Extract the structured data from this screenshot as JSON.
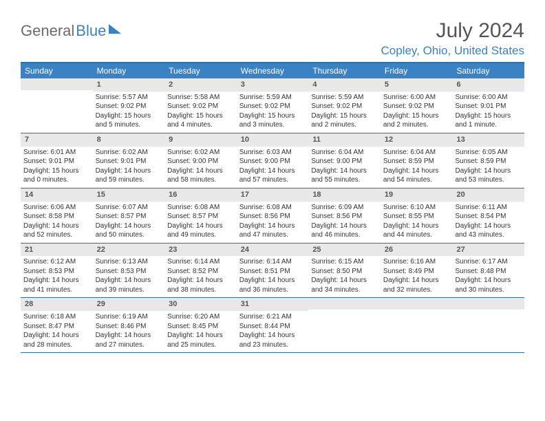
{
  "logo": {
    "text1": "General",
    "text2": "Blue"
  },
  "title": "July 2024",
  "location": "Copley, Ohio, United States",
  "weekdays": [
    "Sunday",
    "Monday",
    "Tuesday",
    "Wednesday",
    "Thursday",
    "Friday",
    "Saturday"
  ],
  "calendar": {
    "type": "table",
    "columns": 7,
    "rows": 5,
    "header_bg": "#3b82c4",
    "header_text_color": "#ffffff",
    "border_color": "#2f6fa8",
    "daynum_bg": "#e8e8e8",
    "body_bg": "#ffffff",
    "font_size_body": 10,
    "font_size_header": 12
  },
  "weeks": [
    [
      {
        "n": "",
        "sr": "",
        "ss": "",
        "dl": ""
      },
      {
        "n": "1",
        "sr": "Sunrise: 5:57 AM",
        "ss": "Sunset: 9:02 PM",
        "dl": "Daylight: 15 hours and 5 minutes."
      },
      {
        "n": "2",
        "sr": "Sunrise: 5:58 AM",
        "ss": "Sunset: 9:02 PM",
        "dl": "Daylight: 15 hours and 4 minutes."
      },
      {
        "n": "3",
        "sr": "Sunrise: 5:59 AM",
        "ss": "Sunset: 9:02 PM",
        "dl": "Daylight: 15 hours and 3 minutes."
      },
      {
        "n": "4",
        "sr": "Sunrise: 5:59 AM",
        "ss": "Sunset: 9:02 PM",
        "dl": "Daylight: 15 hours and 2 minutes."
      },
      {
        "n": "5",
        "sr": "Sunrise: 6:00 AM",
        "ss": "Sunset: 9:02 PM",
        "dl": "Daylight: 15 hours and 2 minutes."
      },
      {
        "n": "6",
        "sr": "Sunrise: 6:00 AM",
        "ss": "Sunset: 9:01 PM",
        "dl": "Daylight: 15 hours and 1 minute."
      }
    ],
    [
      {
        "n": "7",
        "sr": "Sunrise: 6:01 AM",
        "ss": "Sunset: 9:01 PM",
        "dl": "Daylight: 15 hours and 0 minutes."
      },
      {
        "n": "8",
        "sr": "Sunrise: 6:02 AM",
        "ss": "Sunset: 9:01 PM",
        "dl": "Daylight: 14 hours and 59 minutes."
      },
      {
        "n": "9",
        "sr": "Sunrise: 6:02 AM",
        "ss": "Sunset: 9:00 PM",
        "dl": "Daylight: 14 hours and 58 minutes."
      },
      {
        "n": "10",
        "sr": "Sunrise: 6:03 AM",
        "ss": "Sunset: 9:00 PM",
        "dl": "Daylight: 14 hours and 57 minutes."
      },
      {
        "n": "11",
        "sr": "Sunrise: 6:04 AM",
        "ss": "Sunset: 9:00 PM",
        "dl": "Daylight: 14 hours and 55 minutes."
      },
      {
        "n": "12",
        "sr": "Sunrise: 6:04 AM",
        "ss": "Sunset: 8:59 PM",
        "dl": "Daylight: 14 hours and 54 minutes."
      },
      {
        "n": "13",
        "sr": "Sunrise: 6:05 AM",
        "ss": "Sunset: 8:59 PM",
        "dl": "Daylight: 14 hours and 53 minutes."
      }
    ],
    [
      {
        "n": "14",
        "sr": "Sunrise: 6:06 AM",
        "ss": "Sunset: 8:58 PM",
        "dl": "Daylight: 14 hours and 52 minutes."
      },
      {
        "n": "15",
        "sr": "Sunrise: 6:07 AM",
        "ss": "Sunset: 8:57 PM",
        "dl": "Daylight: 14 hours and 50 minutes."
      },
      {
        "n": "16",
        "sr": "Sunrise: 6:08 AM",
        "ss": "Sunset: 8:57 PM",
        "dl": "Daylight: 14 hours and 49 minutes."
      },
      {
        "n": "17",
        "sr": "Sunrise: 6:08 AM",
        "ss": "Sunset: 8:56 PM",
        "dl": "Daylight: 14 hours and 47 minutes."
      },
      {
        "n": "18",
        "sr": "Sunrise: 6:09 AM",
        "ss": "Sunset: 8:56 PM",
        "dl": "Daylight: 14 hours and 46 minutes."
      },
      {
        "n": "19",
        "sr": "Sunrise: 6:10 AM",
        "ss": "Sunset: 8:55 PM",
        "dl": "Daylight: 14 hours and 44 minutes."
      },
      {
        "n": "20",
        "sr": "Sunrise: 6:11 AM",
        "ss": "Sunset: 8:54 PM",
        "dl": "Daylight: 14 hours and 43 minutes."
      }
    ],
    [
      {
        "n": "21",
        "sr": "Sunrise: 6:12 AM",
        "ss": "Sunset: 8:53 PM",
        "dl": "Daylight: 14 hours and 41 minutes."
      },
      {
        "n": "22",
        "sr": "Sunrise: 6:13 AM",
        "ss": "Sunset: 8:53 PM",
        "dl": "Daylight: 14 hours and 39 minutes."
      },
      {
        "n": "23",
        "sr": "Sunrise: 6:14 AM",
        "ss": "Sunset: 8:52 PM",
        "dl": "Daylight: 14 hours and 38 minutes."
      },
      {
        "n": "24",
        "sr": "Sunrise: 6:14 AM",
        "ss": "Sunset: 8:51 PM",
        "dl": "Daylight: 14 hours and 36 minutes."
      },
      {
        "n": "25",
        "sr": "Sunrise: 6:15 AM",
        "ss": "Sunset: 8:50 PM",
        "dl": "Daylight: 14 hours and 34 minutes."
      },
      {
        "n": "26",
        "sr": "Sunrise: 6:16 AM",
        "ss": "Sunset: 8:49 PM",
        "dl": "Daylight: 14 hours and 32 minutes."
      },
      {
        "n": "27",
        "sr": "Sunrise: 6:17 AM",
        "ss": "Sunset: 8:48 PM",
        "dl": "Daylight: 14 hours and 30 minutes."
      }
    ],
    [
      {
        "n": "28",
        "sr": "Sunrise: 6:18 AM",
        "ss": "Sunset: 8:47 PM",
        "dl": "Daylight: 14 hours and 28 minutes."
      },
      {
        "n": "29",
        "sr": "Sunrise: 6:19 AM",
        "ss": "Sunset: 8:46 PM",
        "dl": "Daylight: 14 hours and 27 minutes."
      },
      {
        "n": "30",
        "sr": "Sunrise: 6:20 AM",
        "ss": "Sunset: 8:45 PM",
        "dl": "Daylight: 14 hours and 25 minutes."
      },
      {
        "n": "31",
        "sr": "Sunrise: 6:21 AM",
        "ss": "Sunset: 8:44 PM",
        "dl": "Daylight: 14 hours and 23 minutes."
      },
      {
        "n": "",
        "sr": "",
        "ss": "",
        "dl": ""
      },
      {
        "n": "",
        "sr": "",
        "ss": "",
        "dl": ""
      },
      {
        "n": "",
        "sr": "",
        "ss": "",
        "dl": ""
      }
    ]
  ]
}
